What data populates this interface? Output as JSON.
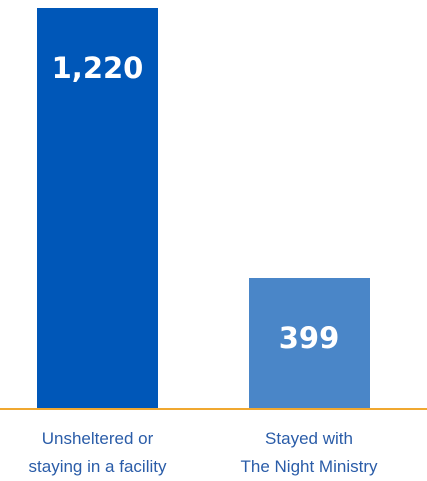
{
  "chart_data": {
    "type": "bar",
    "categories": [
      "Unsheltered or\nstaying in a facility",
      "Stayed with\nThe Night Ministry"
    ],
    "values": [
      1220,
      399
    ],
    "value_labels": [
      "1,220",
      "399"
    ],
    "colors": [
      "#0057b8",
      "#4a86c8"
    ],
    "baseline_color": "#f0a830"
  }
}
